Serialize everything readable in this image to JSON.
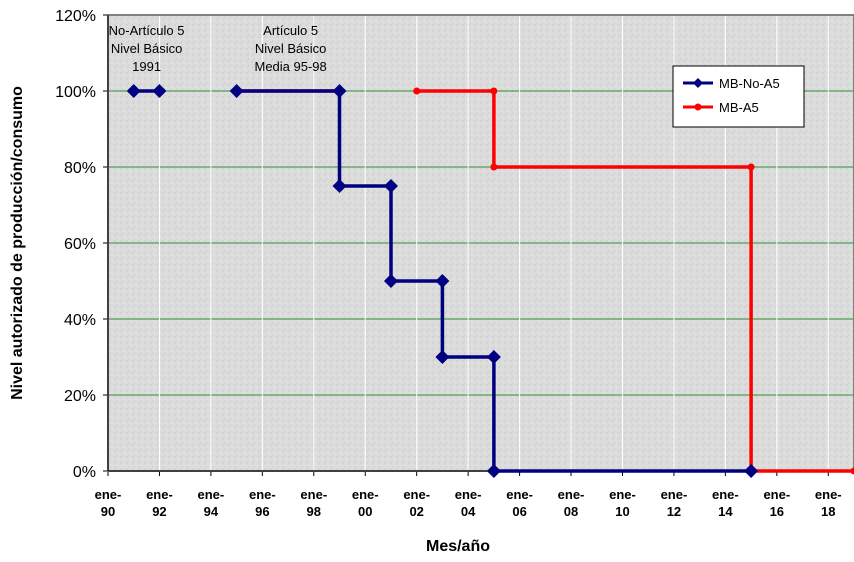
{
  "chart_data": {
    "type": "line",
    "xlabel": "Mes/año",
    "ylabel": "Nivel autorizado de producción/consumo",
    "x_ticks": [
      {
        "year": 1990,
        "label": [
          "ene-",
          "90"
        ]
      },
      {
        "year": 1992,
        "label": [
          "ene-",
          "92"
        ]
      },
      {
        "year": 1994,
        "label": [
          "ene-",
          "94"
        ]
      },
      {
        "year": 1996,
        "label": [
          "ene-",
          "96"
        ]
      },
      {
        "year": 1998,
        "label": [
          "ene-",
          "98"
        ]
      },
      {
        "year": 2000,
        "label": [
          "ene-",
          "00"
        ]
      },
      {
        "year": 2002,
        "label": [
          "ene-",
          "02"
        ]
      },
      {
        "year": 2004,
        "label": [
          "ene-",
          "04"
        ]
      },
      {
        "year": 2006,
        "label": [
          "ene-",
          "06"
        ]
      },
      {
        "year": 2008,
        "label": [
          "ene-",
          "08"
        ]
      },
      {
        "year": 2010,
        "label": [
          "ene-",
          "10"
        ]
      },
      {
        "year": 2012,
        "label": [
          "ene-",
          "12"
        ]
      },
      {
        "year": 2014,
        "label": [
          "ene-",
          "14"
        ]
      },
      {
        "year": 2016,
        "label": [
          "ene-",
          "16"
        ]
      },
      {
        "year": 2018,
        "label": [
          "ene-",
          "18"
        ]
      }
    ],
    "y_ticks": [
      "0%",
      "20%",
      "40%",
      "60%",
      "80%",
      "100%",
      "120%"
    ],
    "xlim": [
      1990,
      2019
    ],
    "ylim": [
      0,
      120
    ],
    "grid": "horizontal and vertical",
    "legend": "top-right",
    "annotations": [
      {
        "lines": [
          "No-Artículo 5",
          "Nivel Básico",
          "1991"
        ],
        "year": 1991.5
      },
      {
        "lines": [
          "Artículo 5",
          "Nivel Básico",
          "Media 95-98"
        ],
        "year": 1997.1
      }
    ],
    "series": [
      {
        "name": "MB-No-A5",
        "color": "#000080",
        "marker": "diamond",
        "x": [
          1991,
          1992,
          null,
          1995,
          1999,
          1999,
          2001,
          2001,
          2003,
          2003,
          2005,
          2005,
          2015
        ],
        "y": [
          100,
          100,
          null,
          100,
          100,
          75,
          75,
          50,
          50,
          30,
          30,
          0,
          0
        ]
      },
      {
        "name": "MB-A5",
        "color": "#ff0000",
        "marker": "circle",
        "x": [
          1995,
          1999,
          null,
          2002,
          2005,
          2005,
          2015,
          2015,
          2019
        ],
        "y": [
          100,
          100,
          null,
          100,
          100,
          80,
          80,
          0,
          0
        ]
      }
    ]
  }
}
